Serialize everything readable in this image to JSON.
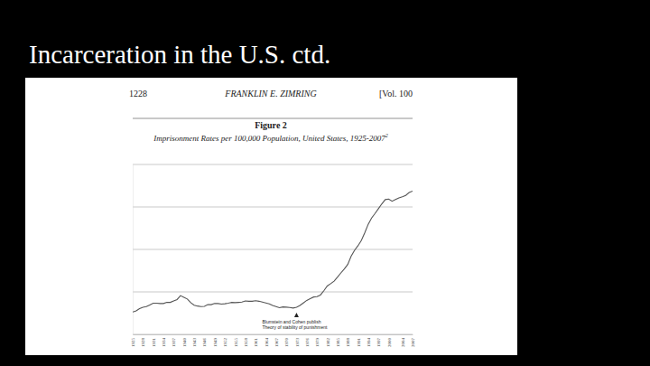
{
  "slide_title": "Incarceration in the U.S. ctd.",
  "page_header": {
    "page": "1228",
    "author": "FRANKLIN E. ZIMRING",
    "volume": "[Vol. 100"
  },
  "chart_data": {
    "type": "line",
    "title": "Figure 2",
    "subtitle": "Imprisonment Rates per 100,000 Population, United States, 1925-2007",
    "subtitle_footnote": "2",
    "x": [
      1925,
      1926,
      1927,
      1928,
      1929,
      1930,
      1931,
      1932,
      1933,
      1934,
      1935,
      1936,
      1937,
      1938,
      1939,
      1940,
      1941,
      1942,
      1943,
      1944,
      1945,
      1946,
      1947,
      1948,
      1949,
      1950,
      1951,
      1952,
      1953,
      1954,
      1955,
      1956,
      1957,
      1958,
      1959,
      1960,
      1961,
      1962,
      1963,
      1964,
      1965,
      1966,
      1967,
      1968,
      1969,
      1970,
      1971,
      1972,
      1973,
      1974,
      1975,
      1976,
      1977,
      1978,
      1979,
      1980,
      1981,
      1982,
      1983,
      1984,
      1985,
      1986,
      1987,
      1988,
      1989,
      1990,
      1991,
      1992,
      1993,
      1994,
      1995,
      1996,
      1997,
      1998,
      1999,
      2000,
      2001,
      2002,
      2003,
      2004,
      2005,
      2006,
      2007
    ],
    "values": [
      79,
      83,
      91,
      96,
      98,
      104,
      110,
      110,
      109,
      109,
      113,
      113,
      118,
      123,
      137,
      131,
      125,
      112,
      103,
      100,
      98,
      99,
      105,
      105,
      109,
      109,
      107,
      108,
      110,
      113,
      112,
      113,
      114,
      118,
      117,
      117,
      119,
      117,
      114,
      111,
      108,
      102,
      98,
      94,
      97,
      96,
      95,
      93,
      96,
      102,
      111,
      120,
      126,
      132,
      133,
      139,
      154,
      171,
      179,
      188,
      202,
      217,
      231,
      247,
      276,
      297,
      313,
      332,
      359,
      389,
      411,
      427,
      444,
      461,
      476,
      478,
      470,
      476,
      482,
      486,
      491,
      501,
      506
    ],
    "color": "#555555",
    "xlim": [
      1925,
      2007
    ],
    "xticks": [
      1925,
      1928,
      1931,
      1934,
      1937,
      1940,
      1943,
      1946,
      1949,
      1952,
      1955,
      1958,
      1961,
      1964,
      1967,
      1970,
      1973,
      1976,
      1979,
      1982,
      1985,
      1988,
      1991,
      1994,
      1997,
      2000,
      2004,
      2007
    ],
    "ylim": [
      0,
      600
    ],
    "yticks": [
      0,
      150,
      300,
      450,
      600
    ],
    "grid": true,
    "tick_labels": "x",
    "annotations": [
      {
        "x": 1973,
        "lines": [
          "Blumstein and Cohen publish",
          "Theory of stability of punishment"
        ]
      }
    ]
  }
}
